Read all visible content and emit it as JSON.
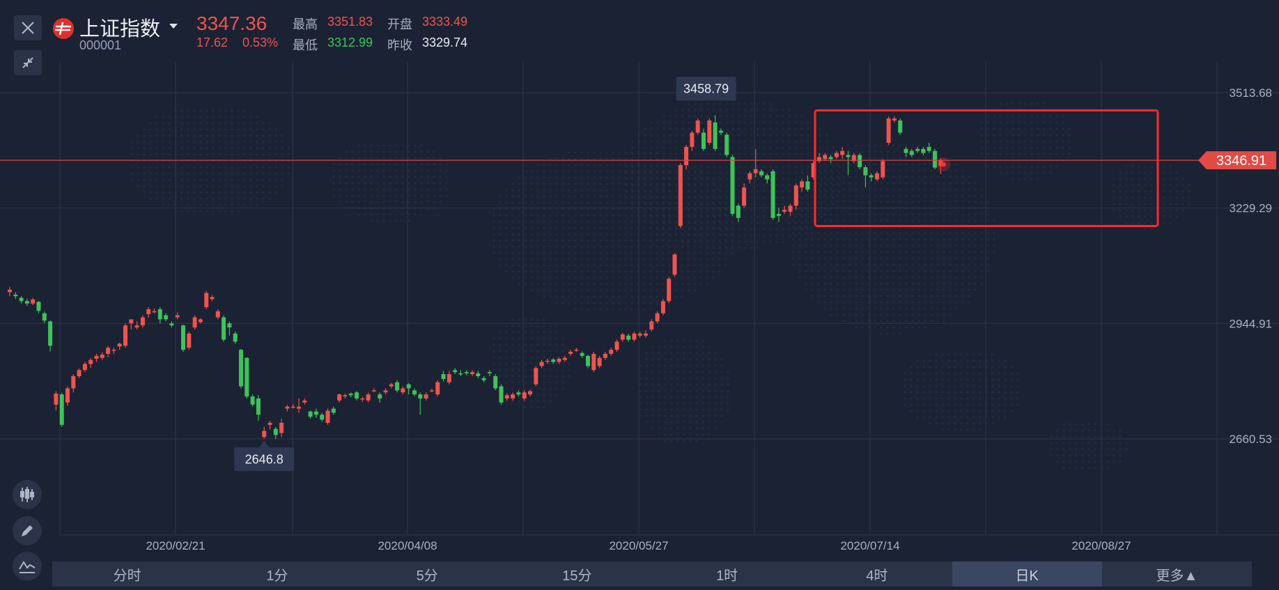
{
  "header": {
    "name": "上证指数",
    "code": "000001",
    "price": "3347.36",
    "change": "17.62",
    "change_pct": "0.53%",
    "high_label": "最高",
    "high": "3351.83",
    "open_label": "开盘",
    "open": "3333.49",
    "low_label": "最低",
    "low": "3312.99",
    "prev_close_label": "昨收",
    "prev_close": "3329.74"
  },
  "colors": {
    "background": "#1b2233",
    "up": "#f0534e",
    "down": "#3ec35a",
    "highlight_box": "#ff2a2a",
    "current_price_line": "#e0423d"
  },
  "icons": [
    "close-icon",
    "collapse-icon",
    "candlestick-icon",
    "pencil-icon",
    "indicator-icon",
    "chevron-down-icon"
  ],
  "tabs": [
    {
      "label": "分时",
      "active": false
    },
    {
      "label": "1分",
      "active": false
    },
    {
      "label": "5分",
      "active": false
    },
    {
      "label": "15分",
      "active": false
    },
    {
      "label": "1时",
      "active": false
    },
    {
      "label": "4时",
      "active": false
    },
    {
      "label": "日K",
      "active": true
    },
    {
      "label": "更多▲",
      "active": false
    }
  ],
  "chart_data": {
    "type": "candlestick",
    "y_ticks": [
      "3513.68",
      "3229.29",
      "2944.91",
      "2660.53"
    ],
    "y_tick_values": [
      3513.68,
      3229.29,
      2944.91,
      2660.53
    ],
    "x_ticks": [
      "2020/02/21",
      "2020/04/08",
      "2020/05/27",
      "2020/07/14",
      "2020/08/27"
    ],
    "current_price_label": "3346.91",
    "current_price": 3346.91,
    "max_annotation": "3458.79",
    "min_annotation": "2646.8",
    "grid": true,
    "highlight_box": {
      "from_date": "2020/07/06",
      "to_date": "2020/09/03",
      "y_top": 3470,
      "y_bottom": 3185
    },
    "candles": [
      [
        3022,
        3028,
        3012,
        3035
      ],
      [
        3016,
        3012,
        3005,
        3022
      ],
      [
        3008,
        3000,
        2994,
        3012
      ],
      [
        3000,
        2994,
        2988,
        3006
      ],
      [
        2994,
        3004,
        2990,
        3008
      ],
      [
        2998,
        2976,
        2970,
        3000
      ],
      [
        2970,
        2952,
        2946,
        2974
      ],
      [
        2950,
        2890,
        2876,
        2952
      ],
      [
        2745,
        2772,
        2730,
        2778
      ],
      [
        2770,
        2695,
        2690,
        2774
      ],
      [
        2750,
        2785,
        2742,
        2790
      ],
      [
        2785,
        2815,
        2775,
        2820
      ],
      [
        2815,
        2830,
        2810,
        2834
      ],
      [
        2830,
        2845,
        2825,
        2850
      ],
      [
        2845,
        2855,
        2835,
        2860
      ],
      [
        2858,
        2865,
        2850,
        2870
      ],
      [
        2860,
        2868,
        2855,
        2874
      ],
      [
        2870,
        2885,
        2862,
        2890
      ],
      [
        2880,
        2880,
        2870,
        2885
      ],
      [
        2888,
        2895,
        2880,
        2898
      ],
      [
        2890,
        2940,
        2885,
        2945
      ],
      [
        2945,
        2955,
        2930,
        2955
      ],
      [
        2935,
        2940,
        2930,
        2950
      ],
      [
        2940,
        2960,
        2935,
        2965
      ],
      [
        2968,
        2980,
        2960,
        2985
      ],
      [
        2975,
        2975,
        2970,
        2982
      ],
      [
        2980,
        2955,
        2945,
        2985
      ],
      [
        2965,
        2955,
        2950,
        2970
      ],
      [
        2945,
        2940,
        2935,
        2950
      ],
      [
        2960,
        2965,
        2955,
        2972
      ],
      [
        2940,
        2880,
        2875,
        2942
      ],
      [
        2885,
        2920,
        2880,
        2925
      ],
      [
        2935,
        2960,
        2930,
        2965
      ],
      [
        2948,
        2955,
        2945,
        2958
      ],
      [
        2985,
        3020,
        2980,
        3025
      ],
      [
        3005,
        3010,
        3000,
        3015
      ],
      [
        2960,
        2975,
        2955,
        2980
      ],
      [
        2960,
        2905,
        2900,
        2965
      ],
      [
        2945,
        2935,
        2915,
        2950
      ],
      [
        2920,
        2900,
        2895,
        2925
      ],
      [
        2880,
        2790,
        2785,
        2882
      ],
      [
        2860,
        2765,
        2760,
        2862
      ],
      [
        2765,
        2745,
        2740,
        2770
      ],
      [
        2760,
        2720,
        2705,
        2768
      ],
      [
        2665,
        2680,
        2660,
        2690
      ],
      [
        2695,
        2700,
        2684,
        2705
      ],
      [
        2685,
        2670,
        2660,
        2690
      ],
      [
        2675,
        2700,
        2665,
        2710
      ],
      [
        2735,
        2740,
        2728,
        2744
      ],
      [
        2740,
        2740,
        2735,
        2746
      ],
      [
        2735,
        2740,
        2725,
        2760
      ],
      [
        2750,
        2755,
        2745,
        2760
      ],
      [
        2728,
        2715,
        2710,
        2730
      ],
      [
        2728,
        2720,
        2712,
        2735
      ],
      [
        2720,
        2708,
        2703,
        2725
      ],
      [
        2700,
        2730,
        2695,
        2735
      ],
      [
        2735,
        2725,
        2720,
        2740
      ],
      [
        2755,
        2770,
        2750,
        2772
      ],
      [
        2765,
        2768,
        2760,
        2772
      ],
      [
        2772,
        2768,
        2763,
        2775
      ],
      [
        2775,
        2760,
        2755,
        2778
      ],
      [
        2760,
        2760,
        2752,
        2765
      ],
      [
        2755,
        2770,
        2750,
        2775
      ],
      [
        2780,
        2780,
        2775,
        2785
      ],
      [
        2770,
        2760,
        2750,
        2775
      ],
      [
        2775,
        2780,
        2770,
        2785
      ],
      [
        2790,
        2795,
        2785,
        2798
      ],
      [
        2800,
        2780,
        2775,
        2805
      ],
      [
        2775,
        2785,
        2770,
        2790
      ],
      [
        2795,
        2785,
        2770,
        2798
      ],
      [
        2780,
        2770,
        2765,
        2785
      ],
      [
        2770,
        2760,
        2720,
        2775
      ],
      [
        2760,
        2770,
        2755,
        2775
      ],
      [
        2780,
        2780,
        2775,
        2785
      ],
      [
        2770,
        2800,
        2765,
        2805
      ],
      [
        2820,
        2808,
        2802,
        2828
      ],
      [
        2800,
        2820,
        2795,
        2828
      ],
      [
        2830,
        2825,
        2820,
        2835
      ],
      [
        2822,
        2820,
        2815,
        2830
      ],
      [
        2825,
        2822,
        2817,
        2830
      ],
      [
        2820,
        2825,
        2815,
        2830
      ],
      [
        2822,
        2815,
        2810,
        2828
      ],
      [
        2810,
        2805,
        2800,
        2815
      ],
      [
        2825,
        2822,
        2815,
        2830
      ],
      [
        2815,
        2785,
        2780,
        2820
      ],
      [
        2790,
        2750,
        2745,
        2795
      ],
      [
        2760,
        2768,
        2755,
        2773
      ],
      [
        2760,
        2770,
        2755,
        2775
      ],
      [
        2775,
        2770,
        2765,
        2780
      ],
      [
        2760,
        2775,
        2755,
        2780
      ],
      [
        2770,
        2778,
        2765,
        2782
      ],
      [
        2795,
        2835,
        2790,
        2840
      ],
      [
        2840,
        2850,
        2835,
        2855
      ],
      [
        2853,
        2853,
        2845,
        2858
      ],
      [
        2856,
        2850,
        2845,
        2860
      ],
      [
        2850,
        2858,
        2845,
        2862
      ],
      [
        2855,
        2860,
        2850,
        2865
      ],
      [
        2870,
        2875,
        2865,
        2880
      ],
      [
        2880,
        2880,
        2875,
        2885
      ],
      [
        2872,
        2865,
        2860,
        2876
      ],
      [
        2865,
        2840,
        2835,
        2868
      ],
      [
        2830,
        2870,
        2825,
        2875
      ],
      [
        2840,
        2860,
        2835,
        2865
      ],
      [
        2860,
        2870,
        2855,
        2875
      ],
      [
        2870,
        2880,
        2865,
        2885
      ],
      [
        2880,
        2900,
        2875,
        2905
      ],
      [
        2905,
        2918,
        2900,
        2922
      ],
      [
        2915,
        2905,
        2900,
        2920
      ],
      [
        2905,
        2920,
        2900,
        2925
      ],
      [
        2915,
        2920,
        2910,
        2925
      ],
      [
        2915,
        2920,
        2910,
        2928
      ],
      [
        2930,
        2950,
        2925,
        2955
      ],
      [
        2950,
        2970,
        2945,
        2975
      ],
      [
        2970,
        3000,
        2965,
        3005
      ],
      [
        3000,
        3055,
        2995,
        3060
      ],
      [
        3065,
        3115,
        3060,
        3118
      ],
      [
        3185,
        3335,
        3180,
        3340
      ],
      [
        3335,
        3380,
        3325,
        3385
      ],
      [
        3380,
        3415,
        3370,
        3420
      ],
      [
        3415,
        3445,
        3410,
        3450
      ],
      [
        3415,
        3375,
        3370,
        3425
      ],
      [
        3390,
        3445,
        3385,
        3450
      ],
      [
        3440,
        3375,
        3370,
        3458
      ],
      [
        3420,
        3415,
        3410,
        3425
      ],
      [
        3410,
        3360,
        3355,
        3415
      ],
      [
        3355,
        3215,
        3210,
        3360
      ],
      [
        3235,
        3205,
        3195,
        3240
      ],
      [
        3235,
        3280,
        3230,
        3290
      ],
      [
        3300,
        3315,
        3290,
        3320
      ],
      [
        3315,
        3325,
        3305,
        3375
      ],
      [
        3320,
        3310,
        3305,
        3325
      ],
      [
        3310,
        3300,
        3290,
        3315
      ],
      [
        3320,
        3205,
        3200,
        3325
      ],
      [
        3215,
        3210,
        3195,
        3230
      ],
      [
        3220,
        3225,
        3215,
        3235
      ],
      [
        3220,
        3235,
        3210,
        3240
      ],
      [
        3235,
        3285,
        3225,
        3290
      ],
      [
        3280,
        3295,
        3270,
        3300
      ],
      [
        3295,
        3275,
        3270,
        3310
      ],
      [
        3305,
        3340,
        3300,
        3345
      ],
      [
        3345,
        3355,
        3340,
        3365
      ],
      [
        3350,
        3360,
        3345,
        3365
      ],
      [
        3355,
        3350,
        3340,
        3360
      ],
      [
        3355,
        3365,
        3350,
        3370
      ],
      [
        3360,
        3370,
        3350,
        3380
      ],
      [
        3360,
        3355,
        3310,
        3370
      ],
      [
        3345,
        3360,
        3340,
        3365
      ],
      [
        3360,
        3330,
        3325,
        3365
      ],
      [
        3330,
        3310,
        3280,
        3335
      ],
      [
        3310,
        3305,
        3295,
        3315
      ],
      [
        3300,
        3315,
        3295,
        3320
      ],
      [
        3305,
        3345,
        3300,
        3350
      ],
      [
        3390,
        3450,
        3385,
        3455
      ],
      [
        3445,
        3450,
        3440,
        3455
      ],
      [
        3445,
        3415,
        3410,
        3450
      ],
      [
        3375,
        3365,
        3355,
        3380
      ],
      [
        3370,
        3360,
        3355,
        3375
      ],
      [
        3375,
        3370,
        3365,
        3380
      ],
      [
        3375,
        3365,
        3360,
        3380
      ],
      [
        3380,
        3370,
        3365,
        3390
      ],
      [
        3370,
        3329,
        3325,
        3375
      ],
      [
        3333,
        3347,
        3313,
        3352
      ]
    ]
  }
}
